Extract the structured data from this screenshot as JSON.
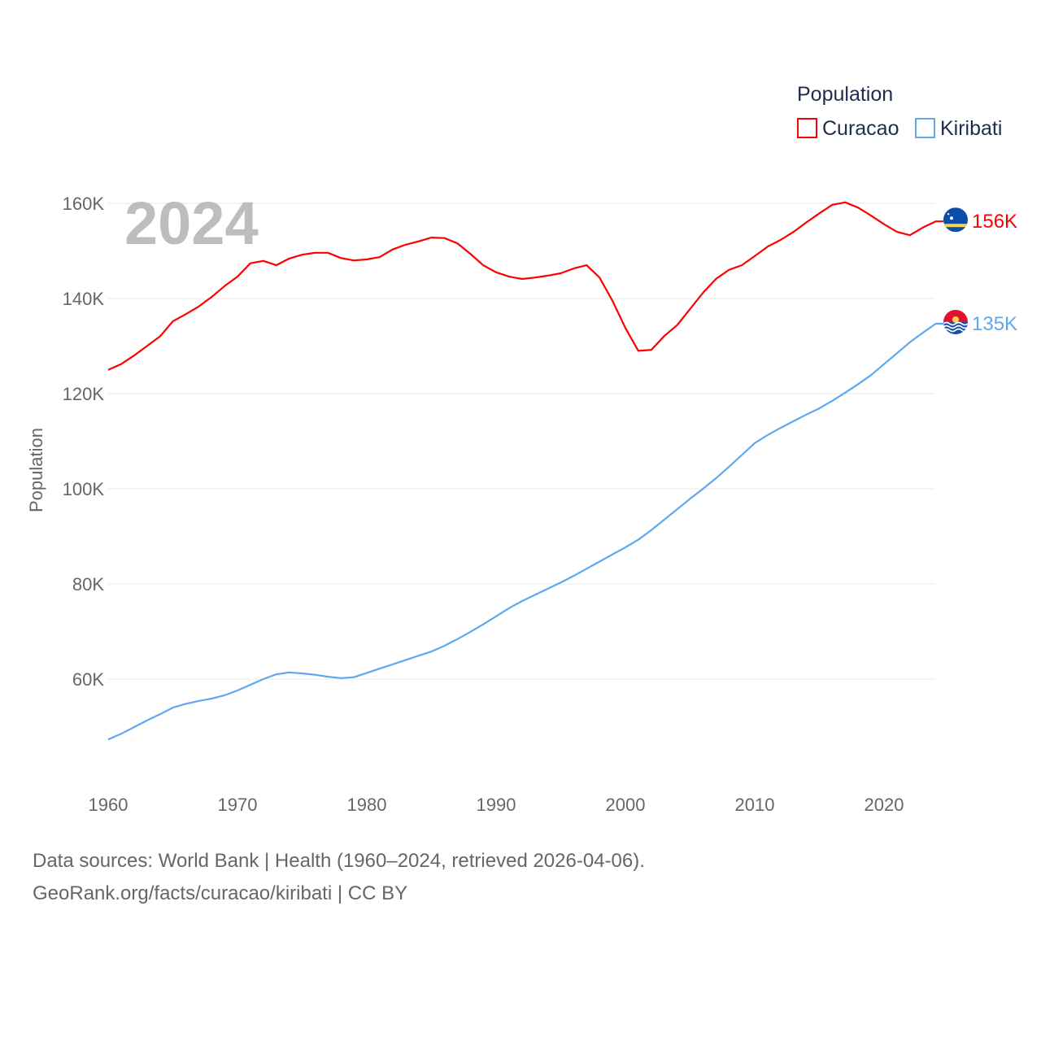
{
  "chart_data": {
    "type": "line",
    "ylabel": "Population",
    "year_label": "2024",
    "legend": {
      "title": "Population",
      "placement": "top-right"
    },
    "x": [
      1960,
      1961,
      1962,
      1963,
      1964,
      1965,
      1966,
      1967,
      1968,
      1969,
      1970,
      1971,
      1972,
      1973,
      1974,
      1975,
      1976,
      1977,
      1978,
      1979,
      1980,
      1981,
      1982,
      1983,
      1984,
      1985,
      1986,
      1987,
      1988,
      1989,
      1990,
      1991,
      1992,
      1993,
      1994,
      1995,
      1996,
      1997,
      1998,
      1999,
      2000,
      2001,
      2002,
      2003,
      2004,
      2005,
      2006,
      2007,
      2008,
      2009,
      2010,
      2011,
      2012,
      2013,
      2014,
      2015,
      2016,
      2017,
      2018,
      2019,
      2020,
      2021,
      2022,
      2023,
      2024
    ],
    "xlim": [
      1960,
      2024
    ],
    "ylim": [
      45000,
      165000
    ],
    "xticks": [
      1960,
      1970,
      1980,
      1990,
      2000,
      2010,
      2020
    ],
    "xtick_labels": [
      "1960",
      "1970",
      "1980",
      "1990",
      "2000",
      "2010",
      "2020"
    ],
    "yticks": [
      60000,
      80000,
      100000,
      120000,
      140000,
      160000
    ],
    "ytick_labels": [
      "60K",
      "80K",
      "100K",
      "120K",
      "140K",
      "160K"
    ],
    "grid": true,
    "series": [
      {
        "name": "Curacao",
        "color": "#ff0000",
        "end_label": "156K",
        "flag": "curacao-flag",
        "values": [
          125000,
          126200,
          128000,
          130000,
          132000,
          135200,
          136700,
          138300,
          140300,
          142600,
          144600,
          147400,
          147900,
          147000,
          148400,
          149200,
          149600,
          149600,
          148500,
          148000,
          148200,
          148700,
          150300,
          151300,
          152000,
          152800,
          152700,
          151600,
          149400,
          147000,
          145500,
          144600,
          144100,
          144400,
          144800,
          145300,
          146300,
          147000,
          144400,
          139500,
          133800,
          129000,
          129200,
          132100,
          134400,
          137800,
          141200,
          144100,
          146000,
          147000,
          148900,
          150900,
          152300,
          154000,
          156000,
          157900,
          159700,
          160200,
          159100,
          157400,
          155600,
          154000,
          153300,
          154900,
          156200
        ]
      },
      {
        "name": "Kiribati",
        "color": "#5ea8f0",
        "end_label": "135K",
        "flag": "kiribati-flag",
        "values": [
          47300,
          48500,
          49900,
          51300,
          52600,
          54000,
          54800,
          55400,
          55900,
          56600,
          57600,
          58800,
          60000,
          61000,
          61400,
          61200,
          60900,
          60500,
          60200,
          60400,
          61300,
          62200,
          63100,
          64000,
          64900,
          65800,
          67000,
          68400,
          69900,
          71500,
          73200,
          74900,
          76400,
          77700,
          79000,
          80300,
          81700,
          83200,
          84700,
          86200,
          87700,
          89300,
          91300,
          93500,
          95700,
          97900,
          100000,
          102200,
          104600,
          107100,
          109600,
          111300,
          112800,
          114200,
          115600,
          116900,
          118500,
          120200,
          122000,
          123900,
          126200,
          128500,
          130800,
          132800,
          134700
        ]
      }
    ]
  },
  "footer": {
    "line1": "Data sources: World Bank | Health (1960–2024, retrieved 2026-04-06).",
    "line2": "GeoRank.org/facts/curacao/kiribati | CC BY"
  }
}
